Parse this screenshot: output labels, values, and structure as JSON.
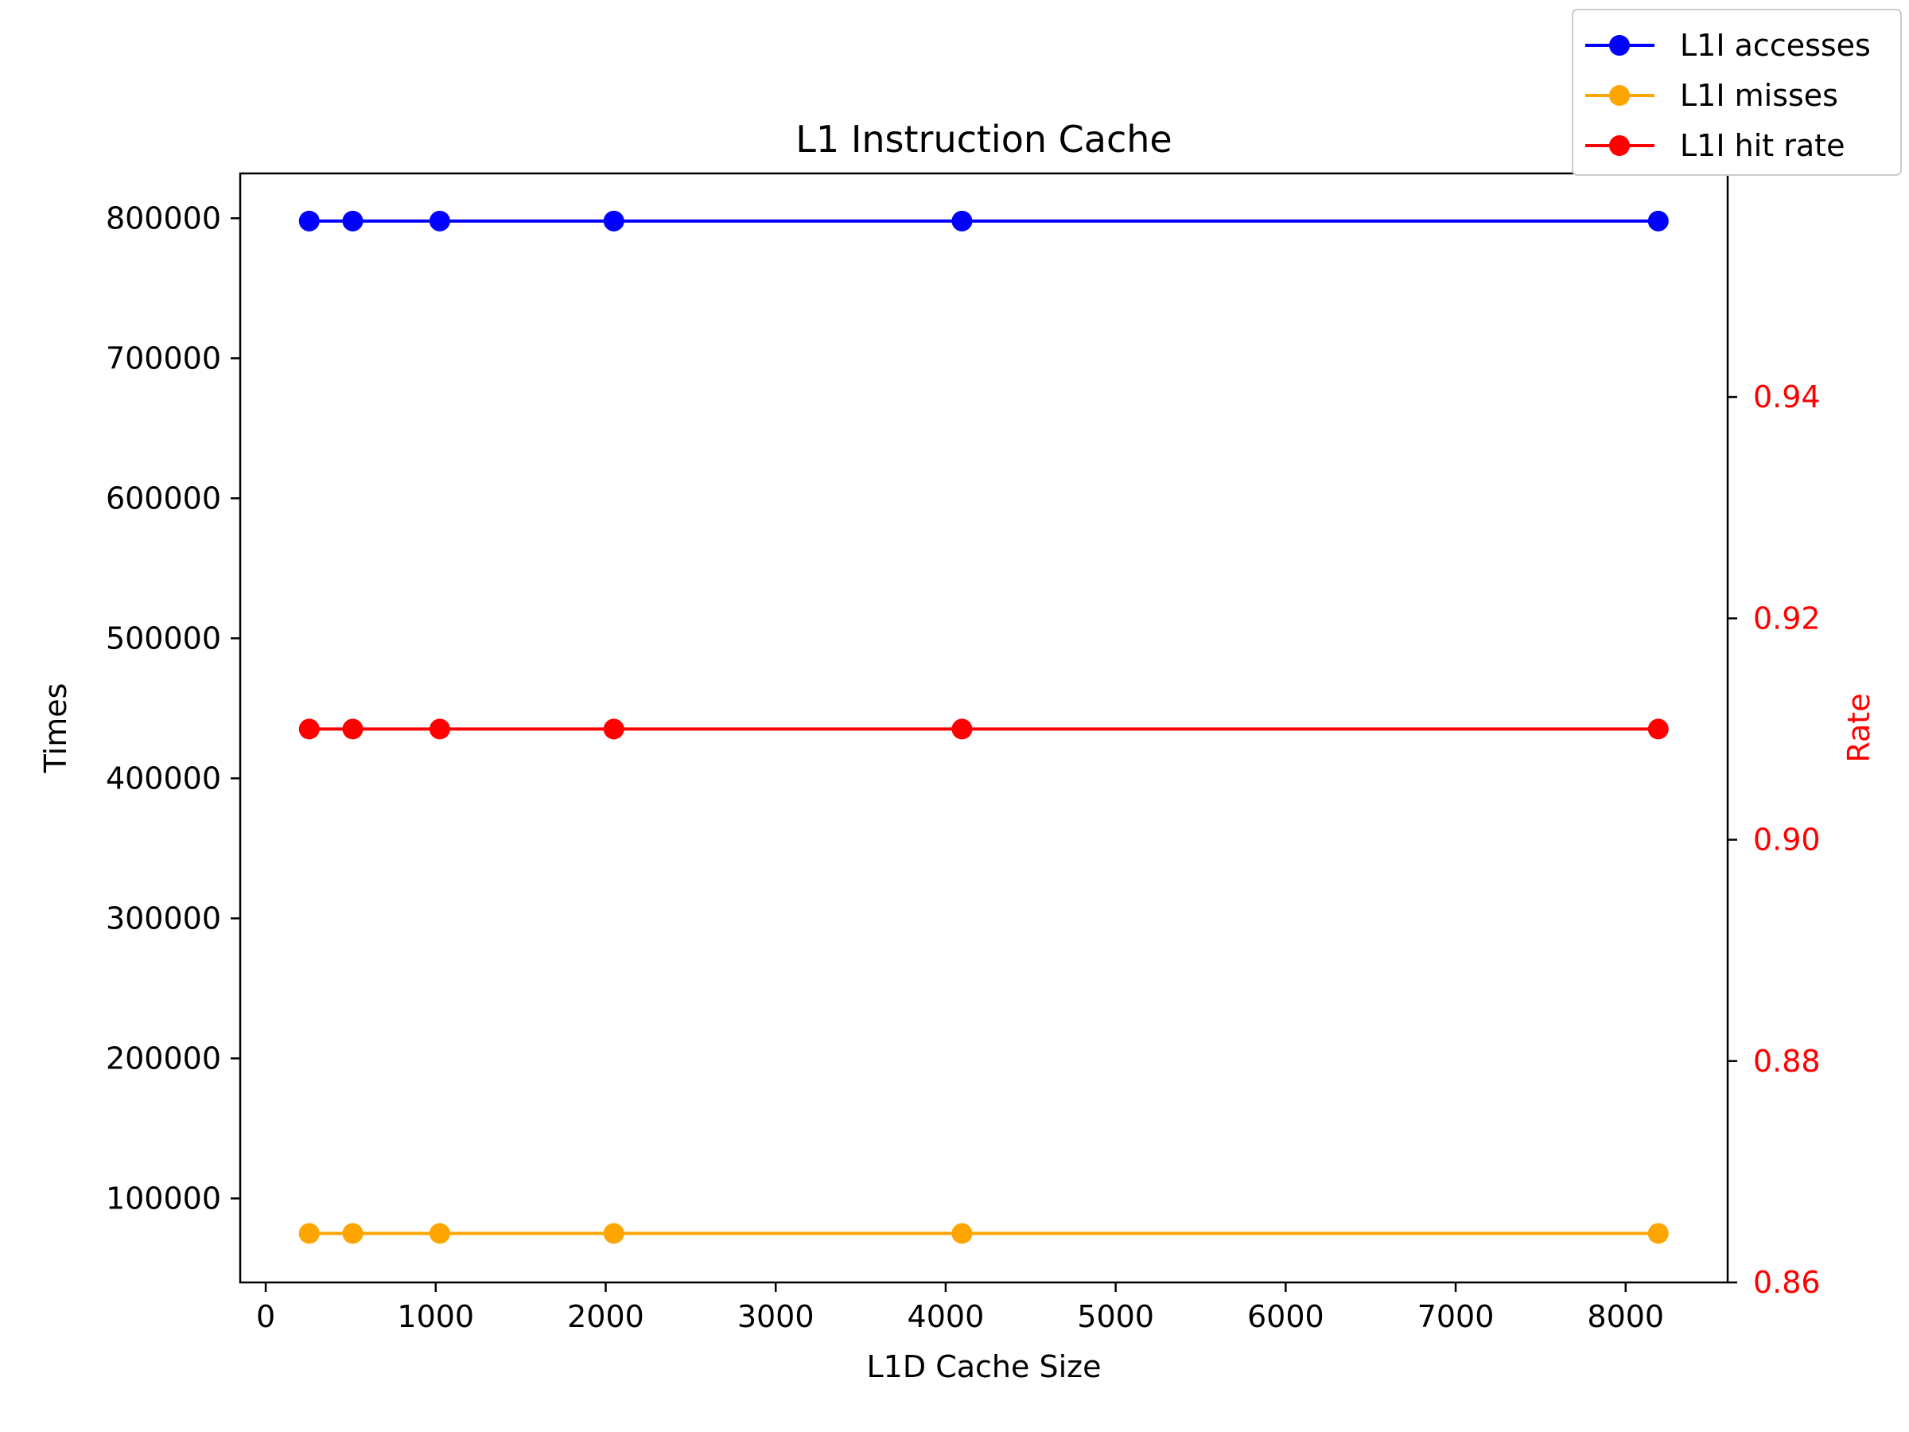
{
  "chart_data": {
    "type": "line",
    "title": "L1 Instruction Cache",
    "xlabel": "L1D Cache Size",
    "ylabel": "Times",
    "y2label": "Rate",
    "x": [
      256,
      512,
      1024,
      2048,
      4096,
      8192
    ],
    "xlim": [
      -150,
      8600
    ],
    "xticks": [
      "0",
      "1000",
      "2000",
      "3000",
      "4000",
      "5000",
      "6000",
      "7000",
      "8000"
    ],
    "ylim": [
      40000,
      832000
    ],
    "yticks": [
      "100000",
      "200000",
      "300000",
      "400000",
      "500000",
      "600000",
      "700000",
      "800000"
    ],
    "y2lim": [
      0.86,
      0.9602
    ],
    "y2ticks": [
      "0.86",
      "0.88",
      "0.90",
      "0.92",
      "0.94"
    ],
    "series": [
      {
        "name": "L1I accesses",
        "axis": "left",
        "color": "#0000ff",
        "values": [
          798000,
          798000,
          798000,
          798000,
          798000,
          798000
        ]
      },
      {
        "name": "L1I misses",
        "axis": "left",
        "color": "#ffa500",
        "values": [
          75000,
          75000,
          75000,
          75000,
          75000,
          75000
        ]
      },
      {
        "name": "L1I hit rate",
        "axis": "right",
        "color": "#ff0000",
        "values": [
          0.91,
          0.91,
          0.91,
          0.91,
          0.91,
          0.91
        ]
      }
    ],
    "legend_position": "top-right",
    "grid": false
  }
}
